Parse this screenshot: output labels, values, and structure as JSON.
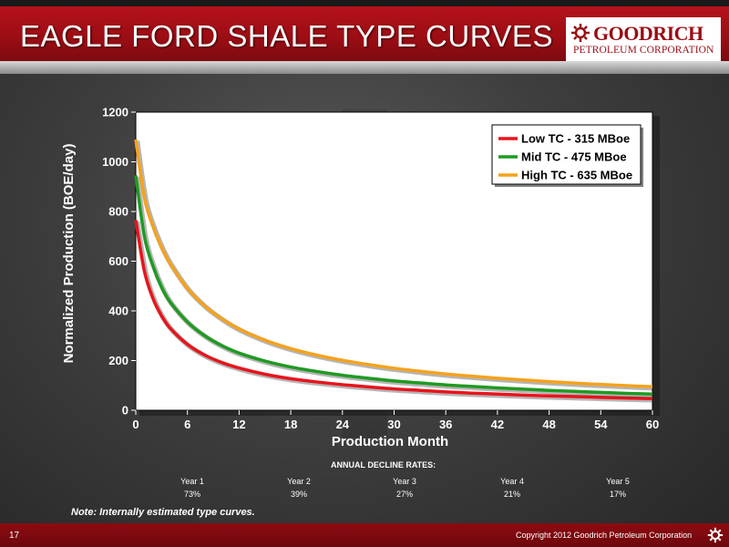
{
  "slide": {
    "title": "EAGLE FORD SHALE TYPE CURVES",
    "page_number": "17",
    "note": "Note: Internally estimated type curves.",
    "copyright": "Copyright 2012 Goodrich Petroleum Corporation"
  },
  "logo": {
    "name": "GOODRICH",
    "subtitle": "PETROLEUM CORPORATION",
    "icon": "gear-sun-icon"
  },
  "colors": {
    "title_bar": "#9a0d14",
    "low": "#e8141c",
    "mid": "#1f9a22",
    "high": "#f5a21c",
    "plot_bg": "#ffffff"
  },
  "chart_data": {
    "type": "line",
    "xlabel": "Production Month",
    "ylabel": "Normalized Production (BOE/day)",
    "xlim": [
      0,
      60
    ],
    "ylim": [
      0,
      1200
    ],
    "x_ticks": [
      "0",
      "6",
      "12",
      "18",
      "24",
      "30",
      "36",
      "42",
      "48",
      "54",
      "60"
    ],
    "y_ticks": [
      "0",
      "200",
      "400",
      "600",
      "800",
      "1000",
      "1200"
    ],
    "x": [
      0,
      1,
      2,
      3,
      4,
      6,
      8,
      10,
      12,
      15,
      18,
      21,
      24,
      27,
      30,
      33,
      36,
      39,
      42,
      45,
      48,
      51,
      54,
      57,
      60
    ],
    "series": [
      {
        "name": "Low TC - 315 MBoe",
        "color": "#e8141c",
        "values": [
          765,
          560,
          450,
          380,
          330,
          265,
          222,
          192,
          170,
          145,
          127,
          114,
          103,
          94,
          86,
          80,
          74,
          69,
          65,
          61,
          58,
          55,
          52,
          49,
          47
        ]
      },
      {
        "name": "Mid TC - 475 MBoe",
        "color": "#1f9a22",
        "values": [
          945,
          700,
          580,
          495,
          435,
          355,
          300,
          260,
          230,
          198,
          174,
          156,
          141,
          129,
          118,
          110,
          102,
          96,
          90,
          85,
          80,
          76,
          72,
          68,
          65
        ]
      },
      {
        "name": "High TC - 635 MBoe",
        "color": "#f5a21c",
        "values": [
          1090,
          855,
          740,
          655,
          590,
          490,
          420,
          368,
          327,
          282,
          248,
          222,
          201,
          184,
          169,
          157,
          146,
          137,
          129,
          122,
          115,
          109,
          104,
          99,
          95
        ]
      }
    ],
    "legend_position": "top-right",
    "grid": false
  },
  "declines": {
    "header": "ANNUAL DECLINE RATES:",
    "items": [
      {
        "year": "Year 1",
        "rate": "73%"
      },
      {
        "year": "Year 2",
        "rate": "39%"
      },
      {
        "year": "Year 3",
        "rate": "27%"
      },
      {
        "year": "Year 4",
        "rate": "21%"
      },
      {
        "year": "Year 5",
        "rate": "17%"
      }
    ]
  }
}
